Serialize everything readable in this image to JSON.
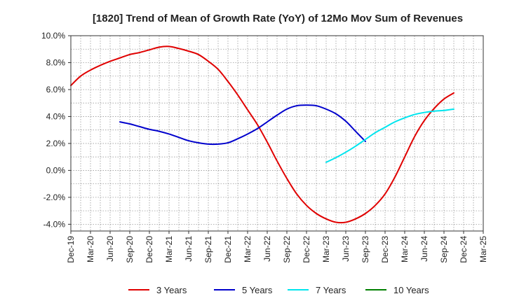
{
  "chart_data": {
    "type": "line",
    "title": "[1820]  Trend of Mean of Growth Rate (YoY) of 12Mo Mov Sum of Revenues",
    "xlabel": "",
    "ylabel": "",
    "ylim": [
      -4.5,
      10.0
    ],
    "y_ticks": [
      10.0,
      8.0,
      6.0,
      4.0,
      2.0,
      0.0,
      -2.0,
      -4.0
    ],
    "y_tick_labels": [
      "10.0%",
      "8.0%",
      "6.0%",
      "4.0%",
      "2.0%",
      "0.0%",
      "-2.0%",
      "-4.0%"
    ],
    "x_tick_labels": [
      "Dec-19",
      "Mar-20",
      "Jun-20",
      "Sep-20",
      "Dec-20",
      "Mar-21",
      "Jun-21",
      "Sep-21",
      "Dec-21",
      "Mar-22",
      "Jun-22",
      "Sep-22",
      "Dec-22",
      "Mar-23",
      "Jun-23",
      "Sep-23",
      "Dec-23",
      "Mar-24",
      "Jun-24",
      "Sep-24",
      "Dec-24",
      "Mar-25"
    ],
    "grid": true,
    "legend_position": "bottom",
    "series": [
      {
        "name": "3 Years",
        "color": "#e00000",
        "start_index": 0,
        "values": [
          6.3,
          7.0,
          7.45,
          7.8,
          8.1,
          8.35,
          8.6,
          8.75,
          8.95,
          9.15,
          9.2,
          9.05,
          8.85,
          8.6,
          8.1,
          7.5,
          6.6,
          5.6,
          4.5,
          3.4,
          2.1,
          0.7,
          -0.6,
          -1.75,
          -2.6,
          -3.2,
          -3.6,
          -3.85,
          -3.85,
          -3.6,
          -3.2,
          -2.6,
          -1.75,
          -0.5,
          1.0,
          2.5,
          3.7,
          4.6,
          5.3,
          5.75
        ]
      },
      {
        "name": "5 Years",
        "color": "#0000cc",
        "start_index": 5,
        "values": [
          3.6,
          3.45,
          3.25,
          3.05,
          2.9,
          2.7,
          2.45,
          2.2,
          2.05,
          1.95,
          1.95,
          2.05,
          2.35,
          2.7,
          3.1,
          3.6,
          4.1,
          4.55,
          4.8,
          4.85,
          4.8,
          4.55,
          4.2,
          3.65,
          2.9,
          2.15
        ]
      },
      {
        "name": "7 Years",
        "color": "#00e5ee",
        "start_index": 26,
        "values": [
          0.6,
          0.95,
          1.35,
          1.8,
          2.3,
          2.8,
          3.2,
          3.6,
          3.9,
          4.15,
          4.3,
          4.4,
          4.45,
          4.55
        ]
      },
      {
        "name": "10 Years",
        "color": "#008000",
        "start_index": 0,
        "values": []
      }
    ]
  }
}
